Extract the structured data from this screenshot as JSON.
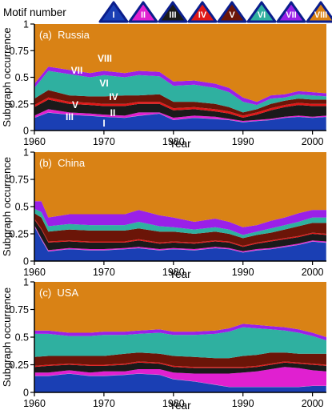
{
  "legend": {
    "title": "Motif number",
    "items": [
      {
        "label": "I",
        "color": "#1a3fb4"
      },
      {
        "label": "II",
        "color": "#e020d0"
      },
      {
        "label": "III",
        "color": "#1a1a1a"
      },
      {
        "label": "IV",
        "color": "#e01818"
      },
      {
        "label": "V",
        "color": "#6b1508"
      },
      {
        "label": "VI",
        "color": "#2fb0a0"
      },
      {
        "label": "VII",
        "color": "#9a20e8"
      },
      {
        "label": "VIII",
        "color": "#d98215"
      }
    ]
  },
  "chart_data": [
    {
      "type": "area",
      "title": "(a)  Russia",
      "xlabel": "Year",
      "ylabel": "Subgraph occurrence",
      "xlim": [
        1960,
        2002
      ],
      "ylim": [
        0,
        1
      ],
      "xticks": [
        "1960",
        "1970",
        "1980",
        "1990",
        "2000"
      ],
      "yticks": [
        "0",
        "0.25",
        "0.5",
        "0.75",
        "1"
      ],
      "stacking": "cumulative",
      "x": [
        1960,
        1962,
        1965,
        1968,
        1970,
        1973,
        1975,
        1978,
        1980,
        1983,
        1986,
        1988,
        1990,
        1992,
        1994,
        1996,
        1998,
        2000,
        2002
      ],
      "series": [
        {
          "name": "I",
          "color": "#1a3fb4",
          "values": [
            0.12,
            0.17,
            0.15,
            0.14,
            0.13,
            0.12,
            0.14,
            0.16,
            0.1,
            0.12,
            0.11,
            0.1,
            0.08,
            0.09,
            0.1,
            0.12,
            0.13,
            0.12,
            0.13
          ]
        },
        {
          "name": "II",
          "color": "#e020d0",
          "values": [
            0.02,
            0.03,
            0.02,
            0.02,
            0.02,
            0.02,
            0.03,
            0.01,
            0.02,
            0.02,
            0.02,
            0.01,
            0.01,
            0.01,
            0.01,
            0.01,
            0.01,
            0.01,
            0.01
          ]
        },
        {
          "name": "III",
          "color": "#1a1a1a",
          "values": [
            0.08,
            0.09,
            0.08,
            0.08,
            0.08,
            0.09,
            0.08,
            0.08,
            0.07,
            0.06,
            0.05,
            0.05,
            0.03,
            0.05,
            0.08,
            0.09,
            0.1,
            0.1,
            0.09
          ]
        },
        {
          "name": "IV",
          "color": "#e01818",
          "values": [
            0.02,
            0.02,
            0.02,
            0.02,
            0.02,
            0.02,
            0.02,
            0.02,
            0.02,
            0.02,
            0.02,
            0.02,
            0.02,
            0.02,
            0.02,
            0.02,
            0.02,
            0.02,
            0.02
          ]
        },
        {
          "name": "V",
          "color": "#6b1508",
          "values": [
            0.06,
            0.07,
            0.06,
            0.06,
            0.07,
            0.08,
            0.06,
            0.07,
            0.06,
            0.05,
            0.05,
            0.04,
            0.03,
            0.03,
            0.04,
            0.04,
            0.04,
            0.04,
            0.04
          ]
        },
        {
          "name": "VI",
          "color": "#2fb0a0",
          "values": [
            0.1,
            0.18,
            0.2,
            0.18,
            0.2,
            0.17,
            0.19,
            0.17,
            0.15,
            0.16,
            0.15,
            0.14,
            0.1,
            0.04,
            0.05,
            0.03,
            0.04,
            0.04,
            0.03
          ]
        },
        {
          "name": "VII",
          "color": "#9a20e8",
          "values": [
            0.04,
            0.04,
            0.04,
            0.04,
            0.04,
            0.04,
            0.04,
            0.04,
            0.04,
            0.04,
            0.04,
            0.04,
            0.04,
            0.03,
            0.03,
            0.03,
            0.03,
            0.03,
            0.03
          ]
        },
        {
          "name": "VIII",
          "color": "#d98215",
          "values": [
            0.56,
            0.4,
            0.43,
            0.46,
            0.44,
            0.46,
            0.44,
            0.45,
            0.54,
            0.53,
            0.56,
            0.6,
            0.69,
            0.73,
            0.67,
            0.66,
            0.63,
            0.64,
            0.65
          ]
        }
      ],
      "annotations": [
        "VIII",
        "VII",
        "VI",
        "V",
        "IV",
        "III",
        "II",
        "I"
      ]
    },
    {
      "type": "area",
      "title": "(b)  China",
      "xlabel": "Year",
      "ylabel": "Subgraph occurrence",
      "xlim": [
        1960,
        2002
      ],
      "ylim": [
        0,
        1
      ],
      "xticks": [
        "1960",
        "1970",
        "1980",
        "1990",
        "2000"
      ],
      "yticks": [
        "0",
        "0.25",
        "0.5",
        "0.75",
        "1"
      ],
      "stacking": "cumulative",
      "x": [
        1960,
        1961,
        1962,
        1965,
        1968,
        1970,
        1973,
        1975,
        1978,
        1980,
        1983,
        1986,
        1988,
        1990,
        1992,
        1994,
        1996,
        1998,
        2000,
        2002
      ],
      "series": [
        {
          "name": "I",
          "color": "#1a3fb4",
          "values": [
            0.32,
            0.2,
            0.09,
            0.11,
            0.1,
            0.1,
            0.11,
            0.12,
            0.1,
            0.11,
            0.1,
            0.12,
            0.11,
            0.08,
            0.1,
            0.11,
            0.13,
            0.15,
            0.18,
            0.17
          ]
        },
        {
          "name": "II",
          "color": "#e020d0",
          "values": [
            0.01,
            0.01,
            0.01,
            0.01,
            0.01,
            0.01,
            0.01,
            0.01,
            0.01,
            0.01,
            0.01,
            0.01,
            0.01,
            0.01,
            0.01,
            0.01,
            0.01,
            0.01,
            0.01,
            0.01
          ]
        },
        {
          "name": "III",
          "color": "#1a1a1a",
          "values": [
            0.05,
            0.08,
            0.07,
            0.06,
            0.06,
            0.06,
            0.05,
            0.06,
            0.05,
            0.05,
            0.05,
            0.05,
            0.05,
            0.04,
            0.05,
            0.06,
            0.06,
            0.06,
            0.06,
            0.06
          ]
        },
        {
          "name": "IV",
          "color": "#e01818",
          "values": [
            0.01,
            0.01,
            0.01,
            0.01,
            0.01,
            0.01,
            0.01,
            0.01,
            0.01,
            0.01,
            0.01,
            0.01,
            0.01,
            0.01,
            0.01,
            0.01,
            0.01,
            0.01,
            0.01,
            0.01
          ]
        },
        {
          "name": "V",
          "color": "#6b1508",
          "values": [
            0.05,
            0.1,
            0.09,
            0.1,
            0.1,
            0.1,
            0.1,
            0.1,
            0.1,
            0.09,
            0.08,
            0.08,
            0.07,
            0.07,
            0.07,
            0.07,
            0.08,
            0.09,
            0.09,
            0.1
          ]
        },
        {
          "name": "VI",
          "color": "#2fb0a0",
          "values": [
            0.04,
            0.05,
            0.05,
            0.05,
            0.05,
            0.05,
            0.05,
            0.06,
            0.05,
            0.04,
            0.04,
            0.04,
            0.04,
            0.03,
            0.03,
            0.04,
            0.04,
            0.04,
            0.05,
            0.05
          ]
        },
        {
          "name": "VII",
          "color": "#9a20e8",
          "values": [
            0.07,
            0.1,
            0.08,
            0.09,
            0.1,
            0.1,
            0.1,
            0.11,
            0.1,
            0.09,
            0.07,
            0.08,
            0.07,
            0.07,
            0.06,
            0.07,
            0.07,
            0.08,
            0.07,
            0.07
          ]
        },
        {
          "name": "VIII",
          "color": "#d98215",
          "values": [
            0.45,
            0.45,
            0.6,
            0.57,
            0.57,
            0.57,
            0.57,
            0.53,
            0.58,
            0.6,
            0.64,
            0.61,
            0.64,
            0.69,
            0.67,
            0.63,
            0.6,
            0.56,
            0.53,
            0.53
          ]
        }
      ]
    },
    {
      "type": "area",
      "title": "(c)  USA",
      "xlabel": "Year",
      "ylabel": "Subgraph occurrence",
      "xlim": [
        1960,
        2002
      ],
      "ylim": [
        0,
        1
      ],
      "xticks": [
        "1960",
        "1970",
        "1980",
        "1990",
        "2000"
      ],
      "yticks": [
        "0",
        "0.25",
        "0.5",
        "0.75",
        "1"
      ],
      "stacking": "cumulative",
      "x": [
        1960,
        1962,
        1965,
        1968,
        1970,
        1973,
        1975,
        1978,
        1980,
        1983,
        1986,
        1988,
        1990,
        1992,
        1994,
        1996,
        1998,
        2000,
        2002
      ],
      "series": [
        {
          "name": "I",
          "color": "#1a3fb4",
          "values": [
            0.15,
            0.15,
            0.17,
            0.15,
            0.15,
            0.16,
            0.17,
            0.16,
            0.12,
            0.1,
            0.07,
            0.05,
            0.05,
            0.05,
            0.05,
            0.05,
            0.05,
            0.06,
            0.06
          ]
        },
        {
          "name": "II",
          "color": "#e020d0",
          "values": [
            0.03,
            0.03,
            0.03,
            0.03,
            0.04,
            0.03,
            0.04,
            0.05,
            0.06,
            0.07,
            0.1,
            0.12,
            0.13,
            0.14,
            0.16,
            0.18,
            0.17,
            0.14,
            0.13
          ]
        },
        {
          "name": "III",
          "color": "#1a1a1a",
          "values": [
            0.05,
            0.06,
            0.05,
            0.06,
            0.05,
            0.06,
            0.06,
            0.05,
            0.05,
            0.05,
            0.05,
            0.05,
            0.04,
            0.04,
            0.04,
            0.04,
            0.04,
            0.05,
            0.05
          ]
        },
        {
          "name": "IV",
          "color": "#e01818",
          "values": [
            0.01,
            0.01,
            0.01,
            0.01,
            0.01,
            0.01,
            0.01,
            0.01,
            0.01,
            0.01,
            0.01,
            0.01,
            0.01,
            0.01,
            0.01,
            0.01,
            0.01,
            0.01,
            0.01
          ]
        },
        {
          "name": "V",
          "color": "#6b1508",
          "values": [
            0.08,
            0.08,
            0.07,
            0.08,
            0.08,
            0.09,
            0.08,
            0.08,
            0.09,
            0.09,
            0.08,
            0.08,
            0.1,
            0.1,
            0.1,
            0.08,
            0.08,
            0.09,
            0.1
          ]
        },
        {
          "name": "VI",
          "color": "#2fb0a0",
          "values": [
            0.21,
            0.2,
            0.18,
            0.18,
            0.19,
            0.17,
            0.17,
            0.19,
            0.19,
            0.2,
            0.22,
            0.24,
            0.26,
            0.24,
            0.21,
            0.2,
            0.19,
            0.16,
            0.12
          ]
        },
        {
          "name": "VII",
          "color": "#9a20e8",
          "values": [
            0.03,
            0.03,
            0.03,
            0.03,
            0.03,
            0.03,
            0.03,
            0.03,
            0.03,
            0.03,
            0.03,
            0.03,
            0.03,
            0.03,
            0.03,
            0.03,
            0.03,
            0.03,
            0.03
          ]
        },
        {
          "name": "VIII",
          "color": "#d98215",
          "values": [
            0.44,
            0.44,
            0.46,
            0.46,
            0.45,
            0.45,
            0.44,
            0.43,
            0.45,
            0.45,
            0.44,
            0.42,
            0.38,
            0.39,
            0.4,
            0.41,
            0.43,
            0.46,
            0.5
          ]
        }
      ]
    }
  ]
}
